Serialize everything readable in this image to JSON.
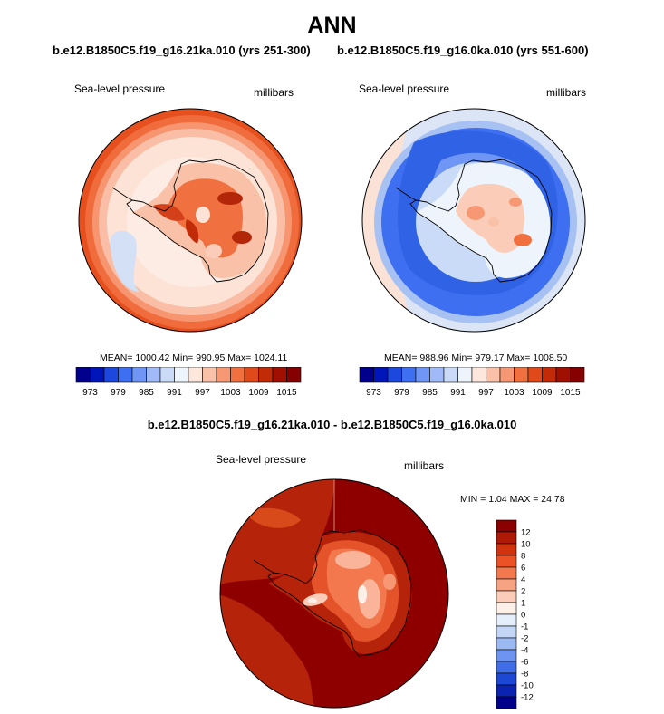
{
  "title": "ANN",
  "panels": [
    {
      "case_title": "b.e12.B1850C5.f19_g16.21ka.010 (yrs 251-300)",
      "field": "Sea-level pressure",
      "units": "millibars",
      "stats": "MEAN= 1000.42  Min= 990.95  Max= 1024.11"
    },
    {
      "case_title": "b.e12.B1850C5.f19_g16.0ka.010 (yrs 551-600)",
      "field": "Sea-level pressure",
      "units": "millibars",
      "stats": "MEAN= 988.96  Min= 979.17  Max= 1008.50"
    }
  ],
  "colorbar": {
    "tick_labels": [
      "973",
      "979",
      "985",
      "991",
      "997",
      "1003",
      "1009",
      "1015"
    ],
    "colors": [
      "#00008c",
      "#0015b8",
      "#1c48dd",
      "#3d6ff0",
      "#6f96f5",
      "#9fbaf7",
      "#cadbf7",
      "#eef4fb",
      "#fde6dc",
      "#f9c1a8",
      "#f69874",
      "#f0703f",
      "#e04a1b",
      "#c22b08",
      "#a01002",
      "#850000"
    ]
  },
  "difference": {
    "title": "b.e12.B1850C5.f19_g16.21ka.010 - b.e12.B1850C5.f19_g16.0ka.010",
    "field": "Sea-level pressure",
    "units": "millibars",
    "minmax": "MIN =   1.04 MAX =  24.78",
    "tick_labels": [
      "12",
      "10",
      "8",
      "6",
      "4",
      "2",
      "1",
      "0",
      "-1",
      "-2",
      "-4",
      "-6",
      "-8",
      "-10",
      "-12"
    ],
    "colors": [
      "#8b0000",
      "#ae1a05",
      "#d0330e",
      "#ea5325",
      "#f3784e",
      "#f6a383",
      "#fbcdb8",
      "#fdf0e8",
      "#e5eefb",
      "#c3d6f5",
      "#9bbaf3",
      "#6d95ef",
      "#3f6ee6",
      "#1d48d4",
      "#0a23b0",
      "#00008b"
    ]
  },
  "map_colors": {
    "ocean_boundary": "#000000",
    "coastline": "#000000"
  }
}
